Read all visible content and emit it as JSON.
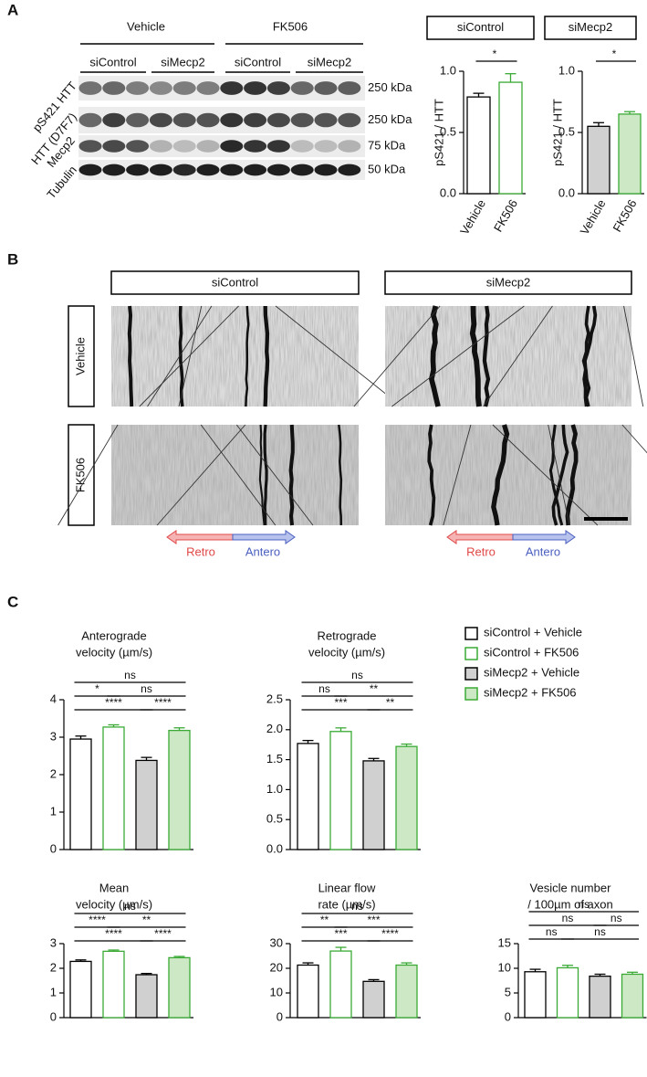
{
  "panel_labels": [
    "A",
    "B",
    "C"
  ],
  "blot": {
    "treatments": [
      "Vehicle",
      "FK506"
    ],
    "sirna": [
      "siControl",
      "siMecp2",
      "siControl",
      "siMecp2"
    ],
    "proteins": [
      "pS421 HTT",
      "HTT (D7F7)",
      "Mecp2",
      "Tubulin"
    ],
    "sizes": [
      "250 kDa",
      "250 kDa",
      "75 kDa",
      "50 kDa"
    ]
  },
  "kymographs": {
    "columns": [
      "siControl",
      "siMecp2"
    ],
    "rows": [
      "Vehicle",
      "FK506"
    ],
    "directions": [
      "Retro",
      "Antero"
    ]
  },
  "legend": [
    {
      "name": "siControl + Vehicle",
      "fill": "#ffffff",
      "stroke": "#000000"
    },
    {
      "name": "siControl + FK506",
      "fill": "#ffffff",
      "stroke": "#3aaa35"
    },
    {
      "name": "siMecp2 + Vehicle",
      "fill": "#d0d0d0",
      "stroke": "#000000"
    },
    {
      "name": "siMecp2 + FK506",
      "fill": "#cce8c4",
      "stroke": "#3aaa35"
    }
  ],
  "chart_data": [
    {
      "type": "bar",
      "title": "siControl",
      "ylabel": "pS421 / HTT",
      "categories": [
        "Vehicle",
        "FK506"
      ],
      "values": [
        0.79,
        0.91
      ],
      "errors": [
        0.03,
        0.07
      ],
      "fills": [
        "#ffffff",
        "#ffffff"
      ],
      "strokes": [
        "#000000",
        "#3aaa35"
      ],
      "ylim": [
        0,
        1
      ],
      "yticks": [
        {
          "value": 0,
          "label": "0.0"
        },
        0.5,
        {
          "value": 1,
          "label": "1.0"
        }
      ],
      "comparisons": [
        [
          {
            "groups": [
              0,
              1
            ],
            "label": "*"
          }
        ]
      ]
    },
    {
      "type": "bar",
      "title": "siMecp2",
      "ylabel": "pS421 / HTT",
      "categories": [
        "Vehicle",
        "FK506"
      ],
      "values": [
        0.55,
        0.65
      ],
      "errors": [
        0.03,
        0.02
      ],
      "fills": [
        "#d0d0d0",
        "#cce8c4"
      ],
      "strokes": [
        "#000000",
        "#3aaa35"
      ],
      "ylim": [
        0,
        1
      ],
      "yticks": [
        {
          "value": 0,
          "label": "0.0"
        },
        0.5,
        {
          "value": 1,
          "label": "1.0"
        }
      ],
      "comparisons": [
        [
          {
            "groups": [
              0,
              1
            ],
            "label": "*"
          }
        ]
      ]
    },
    {
      "type": "bar",
      "title": [
        "Anterograde",
        "velocity (µm/s)"
      ],
      "values": [
        2.95,
        3.27,
        2.38,
        3.18
      ],
      "errors": [
        0.08,
        0.06,
        0.08,
        0.07
      ],
      "ylim": [
        0,
        4
      ],
      "yticks": [
        0,
        1,
        2,
        3,
        4
      ],
      "comparisons": [
        [
          {
            "groups": [
              0,
              3
            ],
            "label": "ns"
          }
        ],
        [
          {
            "groups": [
              0,
              1
            ],
            "label": "*"
          },
          {
            "groups": [
              1,
              3
            ],
            "label": "ns"
          }
        ],
        [
          {
            "groups": [
              0,
              2
            ],
            "label": "****"
          },
          {
            "groups": [
              2,
              3
            ],
            "label": "****"
          }
        ]
      ]
    },
    {
      "type": "bar",
      "title": [
        "Retrograde",
        "velocity (µm/s)"
      ],
      "values": [
        1.77,
        1.97,
        1.48,
        1.72
      ],
      "errors": [
        0.05,
        0.06,
        0.04,
        0.04
      ],
      "ylim": [
        0,
        2.5
      ],
      "yticks": [
        {
          "value": 0,
          "label": "0.0"
        },
        0.5,
        {
          "value": 1,
          "label": "1.0"
        },
        1.5,
        {
          "value": 2,
          "label": "2.0"
        },
        2.5
      ],
      "comparisons": [
        [
          {
            "groups": [
              0,
              3
            ],
            "label": "ns"
          }
        ],
        [
          {
            "groups": [
              0,
              1
            ],
            "label": "ns"
          },
          {
            "groups": [
              1,
              3
            ],
            "label": "**"
          }
        ],
        [
          {
            "groups": [
              0,
              2
            ],
            "label": "***"
          },
          {
            "groups": [
              2,
              3
            ],
            "label": "**"
          }
        ]
      ]
    },
    {
      "type": "bar",
      "title": [
        "Mean",
        "velocity (µm/s)"
      ],
      "values": [
        2.28,
        2.69,
        1.74,
        2.43
      ],
      "errors": [
        0.06,
        0.05,
        0.05,
        0.05
      ],
      "ylim": [
        0,
        3
      ],
      "yticks": [
        0,
        1,
        2,
        3
      ],
      "comparisons": [
        [
          {
            "groups": [
              0,
              3
            ],
            "label": "ns"
          }
        ],
        [
          {
            "groups": [
              0,
              1
            ],
            "label": "****"
          },
          {
            "groups": [
              1,
              3
            ],
            "label": "**"
          }
        ],
        [
          {
            "groups": [
              0,
              2
            ],
            "label": "****"
          },
          {
            "groups": [
              2,
              3
            ],
            "label": "****"
          }
        ]
      ]
    },
    {
      "type": "bar",
      "title": [
        "Linear flow",
        "rate (µm/s)"
      ],
      "values": [
        21.3,
        27,
        14.7,
        21.3
      ],
      "errors": [
        0.9,
        1.5,
        0.7,
        0.9
      ],
      "ylim": [
        0,
        30
      ],
      "yticks": [
        0,
        10,
        20,
        30
      ],
      "comparisons": [
        [
          {
            "groups": [
              0,
              3
            ],
            "label": "ns"
          }
        ],
        [
          {
            "groups": [
              0,
              1
            ],
            "label": "**"
          },
          {
            "groups": [
              1,
              3
            ],
            "label": "***"
          }
        ],
        [
          {
            "groups": [
              0,
              2
            ],
            "label": "***"
          },
          {
            "groups": [
              2,
              3
            ],
            "label": "****"
          }
        ]
      ]
    },
    {
      "type": "bar",
      "title": [
        "Vesicle number",
        "/ 100µm of axon"
      ],
      "values": [
        9.3,
        10.1,
        8.4,
        8.8
      ],
      "errors": [
        0.5,
        0.5,
        0.4,
        0.4
      ],
      "ylim": [
        0,
        15
      ],
      "yticks": [
        0,
        5,
        10,
        15
      ],
      "comparisons": [
        [
          {
            "groups": [
              0,
              3
            ],
            "label": "ns"
          }
        ],
        [
          {
            "groups": [
              0,
              2
            ],
            "label": "ns"
          },
          {
            "groups": [
              2,
              3
            ],
            "label": "ns"
          }
        ],
        [
          {
            "groups": [
              0,
              1
            ],
            "label": "ns"
          },
          {
            "groups": [
              1,
              3
            ],
            "label": "ns"
          }
        ]
      ]
    }
  ]
}
